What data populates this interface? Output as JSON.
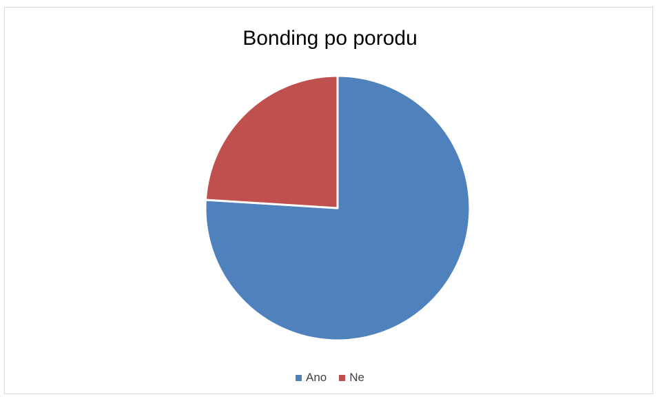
{
  "chart_data": {
    "type": "pie",
    "title": "Bonding po porodu",
    "categories": [
      "Ano",
      "Ne"
    ],
    "values": [
      76,
      24
    ],
    "colors": [
      "#4F81BD",
      "#C0504D"
    ],
    "legend_position": "bottom"
  }
}
